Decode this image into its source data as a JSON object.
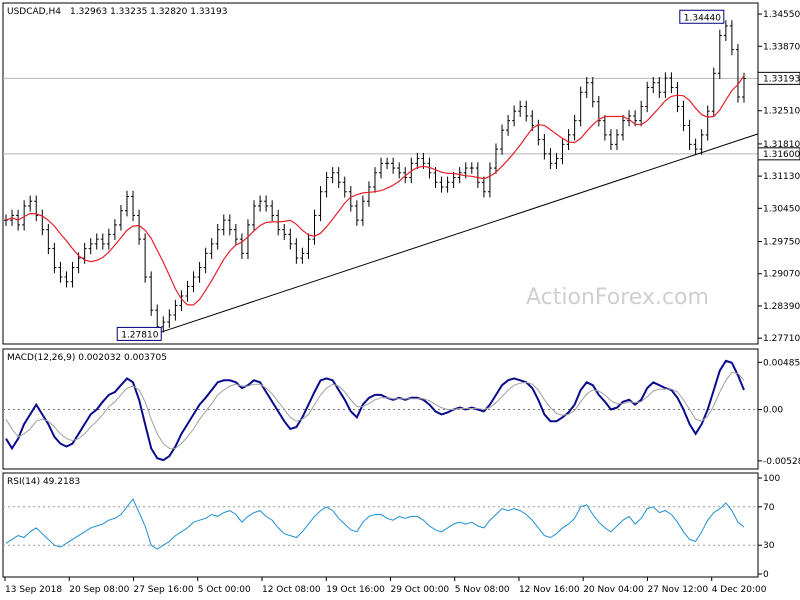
{
  "chart_data": [
    {
      "type": "candlestick",
      "panel": "price",
      "header": {
        "symbol_tf": "USDCAD,H4",
        "ohlc": "1.32963 1.33235 1.32820 1.33193"
      },
      "watermark": "ActionForex.com",
      "yticks": [
        "1.34550",
        "1.33870",
        "1.33193",
        "1.32510",
        "1.31810",
        "1.31600",
        "1.31130",
        "1.30450",
        "1.29750",
        "1.29070",
        "1.28390",
        "1.27710"
      ],
      "ytick_values": [
        1.3455,
        1.3387,
        1.33193,
        1.3251,
        1.3181,
        1.316,
        1.3113,
        1.3045,
        1.2975,
        1.2907,
        1.2839,
        1.2771
      ],
      "highlighted_levels": [
        {
          "label": "1.33193",
          "value": 1.33193,
          "style": "current"
        },
        {
          "label": "1.31600",
          "value": 1.316,
          "style": "horizontal-line"
        }
      ],
      "annotations": [
        {
          "label": "1.34440",
          "value": 1.3444,
          "x_index": 118
        },
        {
          "label": "1.27810",
          "value": 1.2781,
          "x_index": 25
        }
      ],
      "trendline": [
        {
          "x_index": 25,
          "value": 1.2781
        },
        {
          "x_index": 127,
          "value": 1.3198
        }
      ],
      "ma_color": "#e8202a",
      "close_series": [
        1.302,
        1.303,
        1.301,
        1.305,
        1.306,
        1.303,
        1.3,
        1.296,
        1.292,
        1.29,
        1.289,
        1.292,
        1.294,
        1.296,
        1.297,
        1.298,
        1.297,
        1.299,
        1.301,
        1.304,
        1.307,
        1.303,
        1.298,
        1.29,
        1.283,
        1.2795,
        1.2805,
        1.282,
        1.284,
        1.286,
        1.288,
        1.29,
        1.292,
        1.295,
        1.297,
        1.3,
        1.302,
        1.3,
        1.298,
        1.295,
        1.301,
        1.305,
        1.306,
        1.305,
        1.303,
        1.3,
        1.299,
        1.297,
        1.294,
        1.295,
        1.298,
        1.303,
        1.308,
        1.311,
        1.312,
        1.31,
        1.308,
        1.305,
        1.302,
        1.306,
        1.309,
        1.312,
        1.314,
        1.314,
        1.313,
        1.312,
        1.311,
        1.314,
        1.315,
        1.314,
        1.312,
        1.31,
        1.309,
        1.31,
        1.311,
        1.312,
        1.313,
        1.313,
        1.31,
        1.308,
        1.313,
        1.317,
        1.321,
        1.323,
        1.325,
        1.326,
        1.324,
        1.322,
        1.319,
        1.316,
        1.314,
        1.315,
        1.318,
        1.32,
        1.323,
        1.329,
        1.331,
        1.327,
        1.323,
        1.32,
        1.318,
        1.32,
        1.323,
        1.324,
        1.323,
        1.326,
        1.33,
        1.331,
        1.329,
        1.332,
        1.33,
        1.326,
        1.322,
        1.318,
        1.317,
        1.32,
        1.325,
        1.333,
        1.341,
        1.343,
        1.338,
        1.328,
        1.3319
      ],
      "xticks": [
        "13 Sep 2018",
        "20 Sep 08:00",
        "27 Sep 16:00",
        "5 Oct 00:00",
        "12 Oct 08:00",
        "19 Oct 16:00",
        "29 Oct 00:00",
        "5 Nov 08:00",
        "12 Nov 16:00",
        "20 Nov 04:00",
        "27 Nov 12:00",
        "4 Dec 20:00"
      ]
    },
    {
      "type": "line",
      "panel": "macd",
      "header": "MACD(12,26,9) 0.002032 0.003705",
      "yticks": [
        "0.004853",
        "0.00",
        "-0.005284"
      ],
      "ytick_values": [
        0.004853,
        0,
        -0.005284
      ],
      "series": [
        {
          "name": "MACD",
          "color": "#0a0a8c",
          "values": [
            -0.003,
            -0.004,
            -0.003,
            -0.0015,
            -0.0005,
            0.0005,
            -0.0005,
            -0.0015,
            -0.0028,
            -0.0035,
            -0.0038,
            -0.0035,
            -0.0025,
            -0.0015,
            -0.0005,
            0.0,
            0.0008,
            0.0015,
            0.0018,
            0.0025,
            0.0032,
            0.0028,
            0.001,
            -0.0015,
            -0.004,
            -0.005,
            -0.0052,
            -0.0048,
            -0.0038,
            -0.0025,
            -0.0015,
            -0.0005,
            0.0005,
            0.0012,
            0.002,
            0.0028,
            0.003,
            0.003,
            0.0028,
            0.0022,
            0.0025,
            0.003,
            0.0028,
            0.0018,
            0.0008,
            -0.0002,
            -0.0012,
            -0.002,
            -0.0018,
            -0.0008,
            0.0005,
            0.0018,
            0.003,
            0.0032,
            0.003,
            0.002,
            0.001,
            -0.0002,
            -0.0008,
            0.0005,
            0.0012,
            0.0015,
            0.0015,
            0.0012,
            0.001,
            0.0012,
            0.001,
            0.0012,
            0.0012,
            0.001,
            0.0005,
            -0.0002,
            -0.0005,
            -0.0003,
            0.0,
            0.0002,
            0.0,
            0.0002,
            0.0,
            -0.0002,
            0.0005,
            0.0015,
            0.0025,
            0.003,
            0.0032,
            0.003,
            0.0028,
            0.0022,
            0.001,
            -0.0005,
            -0.0012,
            -0.0012,
            -0.0008,
            -0.0003,
            0.0005,
            0.002,
            0.0028,
            0.0025,
            0.0015,
            0.0008,
            0.0,
            0.0002,
            0.0008,
            0.001,
            0.0005,
            0.001,
            0.0022,
            0.0028,
            0.0025,
            0.0022,
            0.002,
            0.0012,
            0.0,
            -0.0015,
            -0.0025,
            -0.0015,
            0.0,
            0.002,
            0.004,
            0.005,
            0.0048,
            0.0035,
            0.002
          ]
        },
        {
          "name": "Signal",
          "color": "#a0a0a0",
          "values": [
            -0.001,
            -0.002,
            -0.0028,
            -0.0025,
            -0.002,
            -0.0012,
            -0.001,
            -0.0012,
            -0.0018,
            -0.0025,
            -0.003,
            -0.0032,
            -0.003,
            -0.0025,
            -0.0018,
            -0.0012,
            -0.0005,
            0.0003,
            0.0008,
            0.0015,
            0.0022,
            0.0024,
            0.002,
            0.0008,
            -0.001,
            -0.0025,
            -0.0035,
            -0.004,
            -0.004,
            -0.0035,
            -0.0028,
            -0.002,
            -0.001,
            -0.0002,
            0.0006,
            0.0015,
            0.002,
            0.0024,
            0.0026,
            0.0024,
            0.0024,
            0.0026,
            0.0026,
            0.0022,
            0.0016,
            0.0008,
            0.0,
            -0.0008,
            -0.0012,
            -0.001,
            -0.0005,
            0.0005,
            0.0015,
            0.0022,
            0.0026,
            0.0024,
            0.0018,
            0.001,
            0.0003,
            0.0003,
            0.0006,
            0.001,
            0.0012,
            0.0012,
            0.0011,
            0.0011,
            0.0011,
            0.0011,
            0.0011,
            0.0011,
            0.0009,
            0.0005,
            0.0002,
            0.0,
            0.0,
            0.0001,
            0.0001,
            0.0001,
            0.0001,
            0.0,
            0.0002,
            0.0007,
            0.0013,
            0.002,
            0.0025,
            0.0027,
            0.0028,
            0.0026,
            0.002,
            0.001,
            0.0002,
            -0.0004,
            -0.0006,
            -0.0005,
            -0.0001,
            0.0008,
            0.0016,
            0.002,
            0.0019,
            0.0015,
            0.0009,
            0.0006,
            0.0006,
            0.0008,
            0.0007,
            0.0008,
            0.0013,
            0.0019,
            0.0021,
            0.0021,
            0.0021,
            0.0018,
            0.001,
            0.0,
            -0.001,
            -0.0012,
            -0.0007,
            0.0004,
            0.0018,
            0.003,
            0.0038,
            0.0037,
            0.003
          ]
        }
      ]
    },
    {
      "type": "line",
      "panel": "rsi",
      "header": "RSI(14) 49.2183",
      "yticks": [
        "100",
        "70",
        "30",
        "0"
      ],
      "ytick_values": [
        100,
        70,
        30,
        0
      ],
      "levels": [
        70,
        30
      ],
      "series": [
        {
          "name": "RSI",
          "color": "#1e8fd6",
          "values": [
            32,
            36,
            40,
            38,
            44,
            48,
            42,
            36,
            30,
            28,
            32,
            36,
            40,
            44,
            48,
            50,
            52,
            56,
            58,
            62,
            70,
            78,
            64,
            50,
            30,
            26,
            30,
            34,
            40,
            44,
            48,
            54,
            56,
            58,
            62,
            60,
            64,
            66,
            62,
            54,
            60,
            64,
            66,
            60,
            56,
            48,
            42,
            40,
            38,
            44,
            52,
            60,
            66,
            70,
            66,
            58,
            52,
            46,
            44,
            54,
            60,
            62,
            62,
            58,
            56,
            60,
            58,
            60,
            60,
            56,
            50,
            46,
            44,
            48,
            52,
            54,
            52,
            54,
            50,
            48,
            56,
            62,
            68,
            66,
            68,
            66,
            62,
            56,
            48,
            40,
            38,
            42,
            48,
            52,
            58,
            70,
            72,
            62,
            54,
            48,
            44,
            50,
            56,
            60,
            52,
            58,
            68,
            70,
            64,
            66,
            62,
            54,
            44,
            36,
            34,
            44,
            56,
            64,
            68,
            74,
            66,
            54,
            49
          ]
        }
      ]
    }
  ]
}
